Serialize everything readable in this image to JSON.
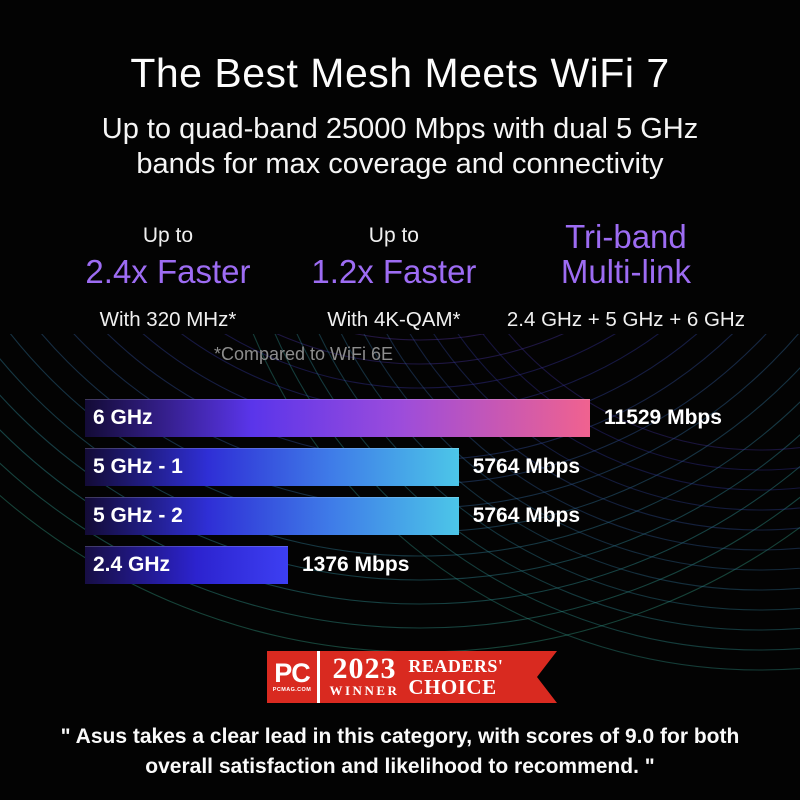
{
  "title": "The Best Mesh Meets WiFi 7",
  "subtitle": {
    "line1": "Up to quad-band 25000 Mbps with dual 5 GHz",
    "line2": "bands for max coverage and connectivity"
  },
  "features": [
    {
      "pre": "Up to",
      "headline": "2.4x Faster",
      "detail": "With 320 MHz*"
    },
    {
      "pre": "Up to",
      "headline": "1.2x Faster",
      "detail": "With 4K-QAM*"
    },
    {
      "headline_line1": "Tri-band",
      "headline_line2": "Multi-link",
      "detail": "2.4 GHz + 5 GHz + 6 GHz"
    }
  ],
  "footnote": "*Compared to WiFi 6E",
  "chart_data": {
    "type": "bar",
    "orientation": "horizontal",
    "categories": [
      "6 GHz",
      "5 GHz - 1",
      "5 GHz - 2",
      "2.4 GHz"
    ],
    "values": [
      11529,
      5764,
      5764,
      1376
    ],
    "unit": "Mbps",
    "value_labels": [
      "11529 Mbps",
      "5764 Mbps",
      "5764 Mbps",
      "1376 Mbps"
    ],
    "bar_width_pct": [
      100,
      74,
      74,
      40.2
    ],
    "bar_gradients": [
      [
        "#130b36 0%",
        "#5a35ea 33%",
        "#9b4cdc 62%",
        "#f0628f 100%"
      ],
      [
        "#130b36 0%",
        "#2f2fd6 33%",
        "#3f7ce8 66%",
        "#4cc6e8 100%"
      ],
      [
        "#130b36 0%",
        "#2f2fd6 33%",
        "#3f7ce8 66%",
        "#4cc6e8 100%"
      ],
      [
        "#170e44 0%",
        "#2c23cf 55%",
        "#3d3ff2 100%"
      ]
    ],
    "legend": "none",
    "grid": false,
    "axis_labels": "values shown as data labels beside bars"
  },
  "award_badge": {
    "brand": "PC",
    "brand_sub": "PCMAG.COM",
    "year": "2023",
    "winner_label": "WINNER",
    "readers_label": "READERS'",
    "choice_label": "CHOICE",
    "badge_color": "#d92a20"
  },
  "quote": {
    "line1": "\" Asus takes a clear lead in this category, with scores of 9.0 for both",
    "line2": "overall satisfaction and likelihood to recommend. \""
  },
  "colors": {
    "background": "#030303",
    "accent_purple": "#9d6cf3",
    "footnote_gray": "#8d8d8d",
    "text_white": "#fafafa",
    "badge_red": "#d92a20",
    "wave_purple": "#4b3d9e",
    "wave_teal": "#2f7d7d"
  }
}
